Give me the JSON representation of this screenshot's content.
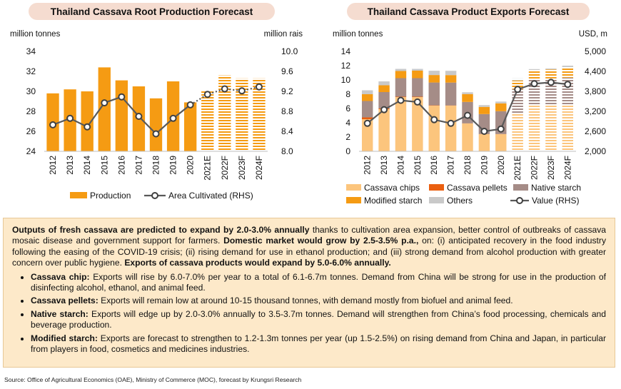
{
  "chart_data": [
    {
      "type": "bar",
      "title": "Thailand Cassava Root Production Forecast",
      "ylabel": "million tonnes",
      "y2label": "million rais",
      "categories": [
        "2012",
        "2013",
        "2014",
        "2015",
        "2016",
        "2017",
        "2018",
        "2019",
        "2020",
        "2021E",
        "2022F",
        "2023F",
        "2024F"
      ],
      "ylim": [
        24,
        34
      ],
      "yticks": [
        24,
        26,
        28,
        30,
        32,
        34
      ],
      "y2lim": [
        8.0,
        10.0
      ],
      "y2ticks": [
        "8.0",
        "8.4",
        "8.8",
        "9.2",
        "9.6",
        "10.0"
      ],
      "forecast_from_index": 9,
      "series": [
        {
          "name": "Production",
          "type": "bar",
          "color": "#f59b13",
          "values": [
            29.8,
            30.2,
            30.0,
            32.4,
            31.1,
            30.5,
            29.3,
            31.0,
            28.9,
            30.1,
            31.6,
            31.3,
            31.3
          ]
        },
        {
          "name": "Area Cultivated (RHS)",
          "type": "line",
          "axis": "right",
          "color": "#595959",
          "values": [
            8.53,
            8.66,
            8.49,
            8.97,
            9.09,
            8.7,
            8.35,
            8.66,
            8.93,
            9.14,
            9.25,
            9.21,
            9.29
          ]
        }
      ],
      "legend": [
        "Production",
        "Area Cultivated (RHS)"
      ]
    },
    {
      "type": "bar",
      "stacked": true,
      "title": "Thailand Cassava Product Exports Forecast",
      "ylabel": "million tonnes",
      "y2label": "USD, m",
      "categories": [
        "2012",
        "2013",
        "2014",
        "2015",
        "2016",
        "2017",
        "2018",
        "2019",
        "2020",
        "2021E",
        "2022F",
        "2023F",
        "2024F"
      ],
      "ylim": [
        0,
        14
      ],
      "yticks": [
        0,
        2,
        4,
        6,
        8,
        10,
        12,
        14
      ],
      "y2lim": [
        2000,
        5000
      ],
      "y2ticks": [
        "2,000",
        "2,600",
        "3,200",
        "3,800",
        "4,400",
        "5,000"
      ],
      "forecast_from_index": 9,
      "series": [
        {
          "name": "Cassava chips",
          "color": "#fcc57d",
          "values": [
            4.5,
            5.9,
            7.6,
            7.6,
            6.4,
            6.4,
            3.9,
            2.4,
            2.4,
            5.2,
            6.4,
            6.5,
            6.5
          ]
        },
        {
          "name": "Cassava pellets",
          "color": "#ea5f10",
          "values": [
            0.25,
            0.1,
            0.05,
            0.05,
            0.04,
            0.03,
            0.02,
            0.02,
            0.02,
            0.02,
            0.02,
            0.02,
            0.02
          ]
        },
        {
          "name": "Native starch",
          "color": "#a58c87",
          "values": [
            2.3,
            2.3,
            2.6,
            2.6,
            3.2,
            3.2,
            3.0,
            2.8,
            3.2,
            3.5,
            3.6,
            3.7,
            3.8
          ]
        },
        {
          "name": "Modified starch",
          "color": "#f59b13",
          "values": [
            0.95,
            0.95,
            1.0,
            1.05,
            1.05,
            1.05,
            1.1,
            1.0,
            1.1,
            1.2,
            1.2,
            1.25,
            1.3
          ]
        },
        {
          "name": "Others",
          "color": "#c9c9c9",
          "values": [
            0.55,
            0.55,
            0.3,
            0.25,
            0.6,
            0.6,
            0.25,
            0.25,
            0.25,
            0.3,
            0.3,
            0.3,
            0.4
          ]
        },
        {
          "name": "Value (RHS)",
          "type": "line",
          "axis": "right",
          "color": "#595959",
          "values": [
            2840,
            3250,
            3530,
            3480,
            2950,
            2840,
            3080,
            2600,
            2670,
            3860,
            4030,
            4070,
            4010
          ]
        }
      ],
      "legend": [
        "Cassava chips",
        "Cassava pellets",
        "Native starch",
        "Modified starch",
        "Others",
        "Value (RHS)"
      ]
    }
  ],
  "summary": {
    "intro_bold": "Outputs of fresh cassava are predicted to expand by 2.0-3.0% annually",
    "intro_text_1": " thanks to cultivation area expansion, better control of outbreaks of cassava mosaic disease and government support for farmers. ",
    "intro_bold_2": "Domestic market would grow by 2.5-3.5% p.a.,",
    "intro_text_2": " on: (i) anticipated recovery in the food industry following the easing of the COVID-19 crisis; (ii) rising demand for use in ethanol production; and (iii) strong demand from alcohol production with greater concern over public hygiene. ",
    "intro_bold_3": "Exports of cassava products would expand by 5.0-6.0% annually.",
    "bullets": [
      {
        "label": "Cassava chip:",
        "text": " Exports will rise by 6.0-7.0% per year to a total of 6.1-6.7m tonnes. Demand from China will be strong for use in the production of disinfecting alcohol, ethanol, and animal feed."
      },
      {
        "label": "Cassava pellets:",
        "text": " Exports will remain low at around 10-15 thousand tonnes, with demand mostly from biofuel and animal feed."
      },
      {
        "label": "Native starch:",
        "text": " Exports will edge up by 2.0-3.0% annually to 3.5-3.7m tonnes. Demand will strengthen from China’s food processing, chemicals and beverage production."
      },
      {
        "label": "Modified starch:",
        "text": " Exports are forecast to strengthen to 1.2-1.3m tonnes per year (up 1.5-2.5%) on rising demand from China and Japan, in particular from players in food, cosmetics and medicines industries."
      }
    ]
  },
  "source": "Source: Office of Agricultural Economics (OAE), Ministry of Commerce (MOC), forecast by Krungsri Research"
}
